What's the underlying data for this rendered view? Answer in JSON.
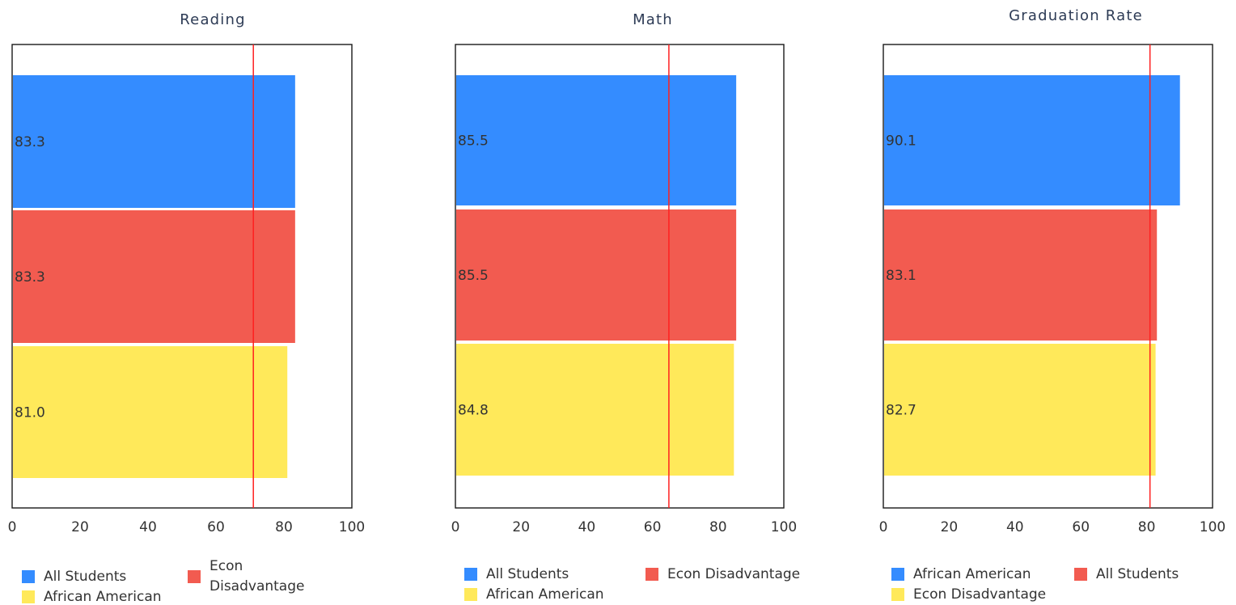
{
  "chart_data": [
    {
      "type": "bar",
      "orientation": "horizontal",
      "title": "Reading",
      "categories": [
        "All Students",
        "Econ Disadvantage",
        "African American"
      ],
      "values": [
        83.3,
        83.3,
        81.0
      ],
      "value_labels": [
        "83.3",
        "83.3",
        "81.0"
      ],
      "colors": [
        "#348cff",
        "#f25b50",
        "#ffe95a"
      ],
      "reference_line": {
        "value": 71,
        "color": "#ff2020"
      },
      "xlim": [
        0,
        100
      ],
      "xticks": [
        "0",
        "20",
        "40",
        "60",
        "80",
        "100"
      ],
      "legend": {
        "placement": "bottom",
        "items": [
          {
            "label": "All Students",
            "color": "#348cff"
          },
          {
            "label": "Econ Disadvantage",
            "color": "#f25b50"
          },
          {
            "label": "African American",
            "color": "#ffe95a"
          }
        ]
      }
    },
    {
      "type": "bar",
      "orientation": "horizontal",
      "title": "Math",
      "categories": [
        "All Students",
        "Econ Disadvantage",
        "African American"
      ],
      "values": [
        85.5,
        85.5,
        84.8
      ],
      "value_labels": [
        "85.5",
        "85.5",
        "84.8"
      ],
      "colors": [
        "#348cff",
        "#f25b50",
        "#ffe95a"
      ],
      "reference_line": {
        "value": 65,
        "color": "#ff2020"
      },
      "xlim": [
        0,
        100
      ],
      "xticks": [
        "0",
        "20",
        "40",
        "60",
        "80",
        "100"
      ],
      "legend": {
        "placement": "bottom",
        "items": [
          {
            "label": "All Students",
            "color": "#348cff"
          },
          {
            "label": "Econ Disadvantage",
            "color": "#f25b50"
          },
          {
            "label": "African American",
            "color": "#ffe95a"
          }
        ]
      }
    },
    {
      "type": "bar",
      "orientation": "horizontal",
      "title": "Graduation Rate",
      "categories": [
        "African American",
        "All Students",
        "Econ Disadvantage"
      ],
      "values": [
        90.1,
        83.1,
        82.7
      ],
      "value_labels": [
        "90.1",
        "83.1",
        "82.7"
      ],
      "colors": [
        "#348cff",
        "#f25b50",
        "#ffe95a"
      ],
      "reference_line": {
        "value": 81,
        "color": "#ff2020"
      },
      "xlim": [
        0,
        100
      ],
      "xticks": [
        "0",
        "20",
        "40",
        "60",
        "80",
        "100"
      ],
      "legend": {
        "placement": "bottom",
        "items": [
          {
            "label": "African American",
            "color": "#348cff"
          },
          {
            "label": "All Students",
            "color": "#f25b50"
          },
          {
            "label": "Econ Disadvantage",
            "color": "#ffe95a"
          }
        ]
      }
    }
  ]
}
